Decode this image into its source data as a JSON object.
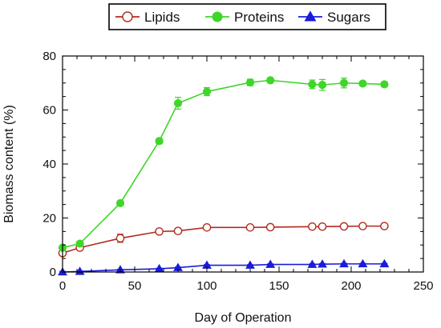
{
  "chart_data": {
    "type": "line",
    "xlabel": "Day of Operation",
    "ylabel": "Biomass content (%)",
    "xlim": [
      0,
      250
    ],
    "ylim": [
      0,
      80
    ],
    "x_ticks": [
      "0",
      "50",
      "100",
      "150",
      "200",
      "250"
    ],
    "y_ticks": [
      "0",
      "20",
      "40",
      "60",
      "80"
    ],
    "grid": false,
    "legend_position": "top",
    "series": [
      {
        "name": "Lipids",
        "color": "#b22a1e",
        "marker": "open-circle",
        "x": [
          0,
          12,
          40,
          67,
          80,
          100,
          130,
          144,
          173,
          180,
          195,
          208,
          223
        ],
        "y": [
          7,
          9,
          12.5,
          15,
          15.2,
          16.5,
          16.5,
          16.6,
          16.8,
          16.8,
          16.9,
          17,
          17
        ],
        "err": [
          0.5,
          0.5,
          1.5,
          0.4,
          0.4,
          0.4,
          0.3,
          0.3,
          0.3,
          0.4,
          0.3,
          0.3,
          0.3
        ]
      },
      {
        "name": "Proteins",
        "color": "#3fd62a",
        "marker": "filled-circle",
        "x": [
          0,
          12,
          40,
          67,
          80,
          100,
          130,
          144,
          173,
          180,
          195,
          208,
          223
        ],
        "y": [
          9,
          10.5,
          25.5,
          48.5,
          62.5,
          66.8,
          70.2,
          71,
          69.5,
          69.3,
          70,
          69.8,
          69.5
        ],
        "err": [
          0.8,
          0.8,
          0.8,
          1,
          2.2,
          1.5,
          1.2,
          0.8,
          1.6,
          2,
          1.8,
          0.8,
          0.9
        ]
      },
      {
        "name": "Sugars",
        "color": "#1b1bd8",
        "marker": "filled-triangle",
        "x": [
          0,
          12,
          40,
          67,
          80,
          100,
          130,
          144,
          173,
          180,
          195,
          208,
          223
        ],
        "y": [
          0,
          0.2,
          0.8,
          1.2,
          1.6,
          2.5,
          2.5,
          2.8,
          2.8,
          2.9,
          3,
          3,
          3
        ],
        "err": [
          0.2,
          0.2,
          0.2,
          0.2,
          0.2,
          0.2,
          0.2,
          0.2,
          0.2,
          0.2,
          0.2,
          0.2,
          0.2
        ]
      }
    ]
  }
}
